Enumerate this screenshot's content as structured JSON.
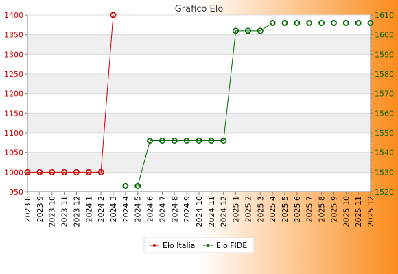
{
  "chart_data": {
    "type": "line",
    "title": "Grafico Elo",
    "x": [
      "2023 8",
      "2023 9",
      "2023 10",
      "2023 11",
      "2023 12",
      "2024 1",
      "2024 2",
      "2024 3",
      "2024 4",
      "2024 5",
      "2024 6",
      "2024 7",
      "2024 8",
      "2024 9",
      "2024 10",
      "2024 11",
      "2024 12",
      "2025 1",
      "2025 2",
      "2025 3",
      "2025 4",
      "2025 5",
      "2025 6",
      "2025 7",
      "2025 8",
      "2025 9",
      "2025 10",
      "2025 11",
      "2025 12"
    ],
    "y_left": {
      "ticks": [
        950,
        1000,
        1050,
        1100,
        1150,
        1200,
        1250,
        1300,
        1350,
        1400
      ],
      "range": [
        950,
        1400
      ]
    },
    "y_right": {
      "ticks": [
        1520,
        1530,
        1540,
        1550,
        1560,
        1570,
        1580,
        1590,
        1600,
        1610
      ],
      "range": [
        1520,
        1610
      ]
    },
    "series": [
      {
        "name": "Elo Italia",
        "axis": "left",
        "color": "#cc0000",
        "values": [
          1000,
          1000,
          1000,
          1000,
          1000,
          1000,
          1000,
          1400,
          null,
          null,
          null,
          null,
          null,
          null,
          null,
          null,
          null,
          null,
          null,
          null,
          null,
          null,
          null,
          null,
          null,
          null,
          null,
          null,
          null
        ]
      },
      {
        "name": "Elo FIDE",
        "axis": "right",
        "color": "#006600",
        "values": [
          null,
          null,
          null,
          null,
          null,
          null,
          null,
          null,
          1523,
          1523,
          1546,
          1546,
          1546,
          1546,
          1546,
          1546,
          1546,
          1602,
          1602,
          1602,
          1606,
          1606,
          1606,
          1606,
          1606,
          1606,
          1606,
          1606,
          1606
        ]
      }
    ],
    "grid": true,
    "legend": "bottom"
  }
}
